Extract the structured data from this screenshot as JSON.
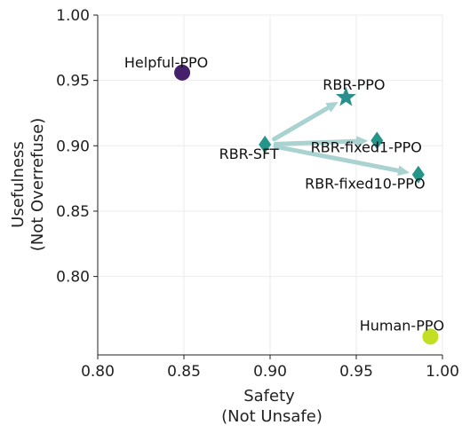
{
  "chart_data": {
    "type": "scatter",
    "xlabel": [
      "Safety",
      "(Not Unsafe)"
    ],
    "ylabel": [
      "Usefulness",
      "(Not Overrefuse)"
    ],
    "xlim": [
      0.8,
      1.0
    ],
    "ylim": [
      0.74,
      1.0
    ],
    "xticks": [
      "0.80",
      "0.85",
      "0.90",
      "0.95",
      "1.00"
    ],
    "yticks": [
      "0.80",
      "0.85",
      "0.90",
      "0.95",
      "1.00"
    ],
    "grid": true,
    "points": [
      {
        "label": "Helpful-PPO",
        "x": 0.849,
        "y": 0.956,
        "marker": "circle",
        "color": "#46216b"
      },
      {
        "label": "RBR-PPO",
        "x": 0.944,
        "y": 0.937,
        "marker": "star",
        "color": "#2a8f8c"
      },
      {
        "label": "RBR-SFT",
        "x": 0.897,
        "y": 0.901,
        "marker": "diamond",
        "color": "#259489"
      },
      {
        "label": "RBR-fixed1-PPO",
        "x": 0.962,
        "y": 0.904,
        "marker": "diamond",
        "color": "#259489"
      },
      {
        "label": "RBR-fixed10-PPO",
        "x": 0.986,
        "y": 0.878,
        "marker": "diamond",
        "color": "#259489"
      },
      {
        "label": "Human-PPO",
        "x": 0.993,
        "y": 0.754,
        "marker": "circle",
        "color": "#c2df23"
      }
    ],
    "arrows": [
      {
        "from": "RBR-SFT",
        "to": "RBR-PPO"
      },
      {
        "from": "RBR-SFT",
        "to": "RBR-fixed1-PPO"
      },
      {
        "from": "RBR-SFT",
        "to": "RBR-fixed10-PPO"
      }
    ],
    "arrow_color": "#a9d3d1"
  }
}
